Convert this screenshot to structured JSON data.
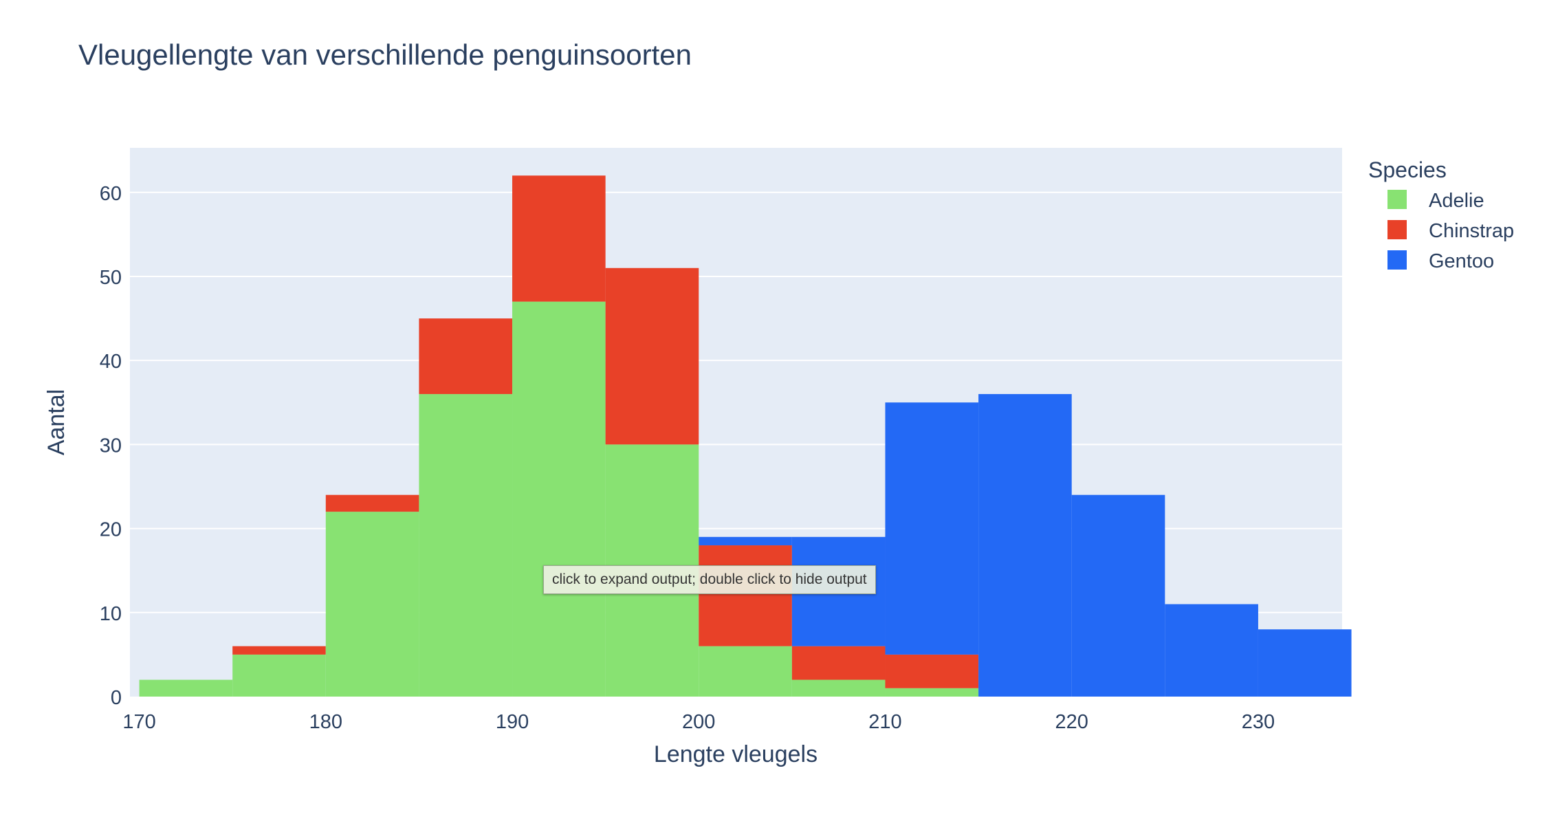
{
  "chart_data": {
    "type": "bar",
    "title": "Vleugellengte van verschillende penguinsoorten",
    "xlabel": "Lengte vleugels",
    "ylabel": "Aantal",
    "stacked": true,
    "bin_width": 5,
    "x": [
      172.5,
      177.5,
      182.5,
      187.5,
      192.5,
      197.5,
      202.5,
      207.5,
      212.5,
      217.5,
      222.5,
      227.5,
      232.5
    ],
    "xlim": [
      169.5,
      234.5
    ],
    "ylim": [
      0,
      65.3
    ],
    "x_ticks": [
      170,
      180,
      190,
      200,
      210,
      220,
      230
    ],
    "y_ticks": [
      0,
      10,
      20,
      30,
      40,
      50,
      60
    ],
    "grid": true,
    "legend_title": "Species",
    "legend_position": "right",
    "series": [
      {
        "name": "Adelie",
        "color": "#88e272",
        "values": [
          2,
          5,
          22,
          36,
          47,
          30,
          6,
          2,
          1,
          0,
          0,
          0,
          0
        ]
      },
      {
        "name": "Chinstrap",
        "color": "#e84128",
        "values": [
          0,
          1,
          2,
          9,
          15,
          21,
          12,
          4,
          4,
          0,
          0,
          0,
          0
        ]
      },
      {
        "name": "Gentoo",
        "color": "#2369f5",
        "values": [
          0,
          0,
          0,
          0,
          0,
          0,
          1,
          13,
          30,
          36,
          24,
          11,
          8
        ]
      }
    ]
  },
  "tooltip": {
    "text": "click to expand output; double click to hide output"
  }
}
